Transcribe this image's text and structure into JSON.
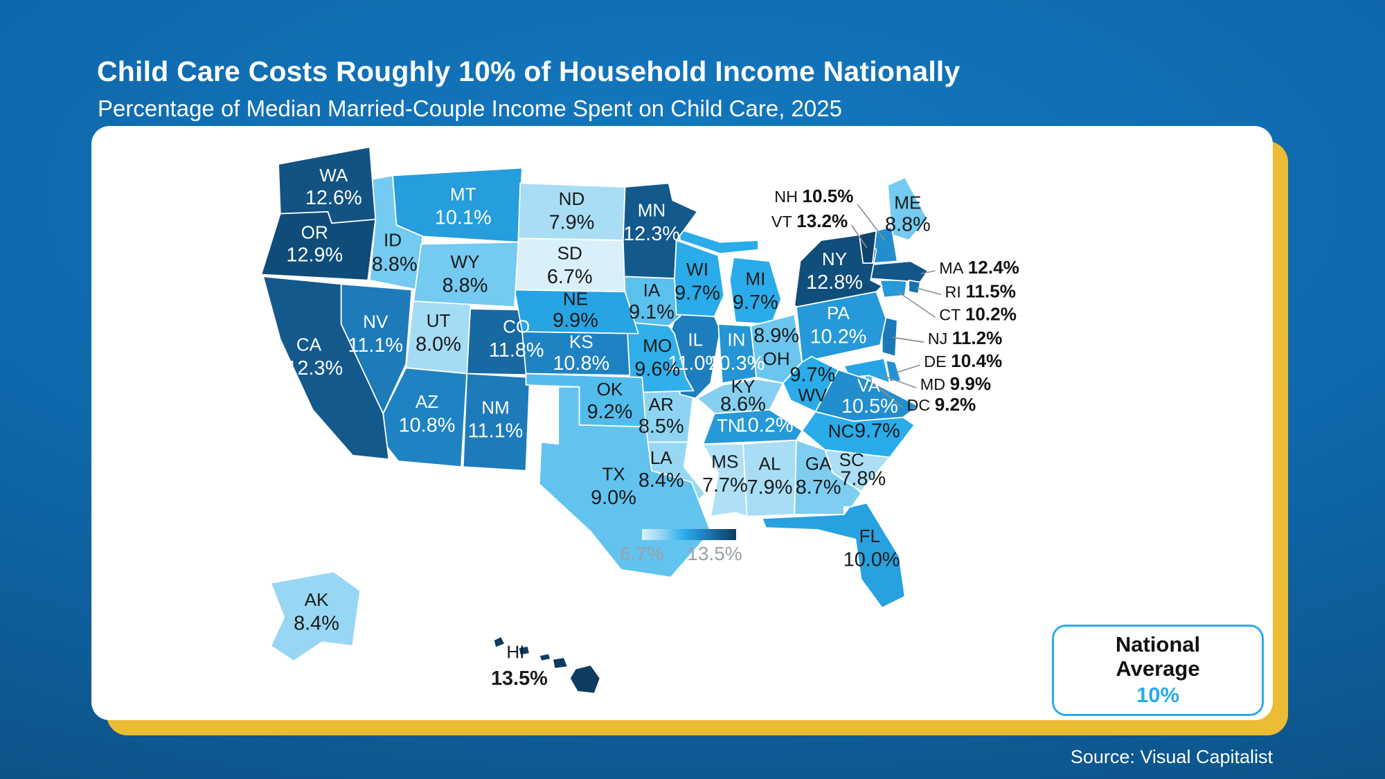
{
  "header": {
    "title": "Child Care Costs Roughly 10% of Household Income Nationally",
    "subtitle": "Percentage of Median Married-Couple Income Spent on Child Care, 2025"
  },
  "source": "Source: Visual Capitalist",
  "legend": {
    "min": "6.7%",
    "max": "13.5%"
  },
  "national_average": {
    "label": "National Average",
    "value": "10%"
  },
  "colors": {
    "accent": "#29ABE9",
    "gold": "#EBBC34",
    "card": "#FFFFFF",
    "bg_center": "#1379C0",
    "bg_edge": "#0C4E80",
    "label_dark": "#1A1A1A",
    "label_light": "#FFFFFF",
    "legend_text": "#9AA1A7",
    "callout_text": "#111111",
    "leader_line": "#8A8F94",
    "scale": [
      [
        6.7,
        "#D9F0FA"
      ],
      [
        7.7,
        "#AFE0F6"
      ],
      [
        8.4,
        "#97D7F3"
      ],
      [
        9.0,
        "#62C3EE"
      ],
      [
        9.7,
        "#29ACE9"
      ],
      [
        10.2,
        "#2599D9"
      ],
      [
        10.8,
        "#1F83C3"
      ],
      [
        11.5,
        "#1A71AF"
      ],
      [
        12.3,
        "#14598C"
      ],
      [
        12.9,
        "#0F4C79"
      ],
      [
        13.5,
        "#0D3C60"
      ]
    ]
  },
  "chart_data": {
    "type": "heatmap",
    "subtype": "us-state-choropleth",
    "title": "Child Care Costs Roughly 10% of Household Income Nationally",
    "subtitle": "Percentage of Median Married-Couple Income Spent on Child Care, 2025",
    "unit": "%",
    "value_range": [
      6.7,
      13.5
    ],
    "national_average_pct": 10,
    "legend_position": "bottom-center",
    "states": [
      {
        "abbr": "AL",
        "value": 7.9,
        "display": "7.9%"
      },
      {
        "abbr": "AK",
        "value": 8.4,
        "display": "8.4%"
      },
      {
        "abbr": "AZ",
        "value": 10.8,
        "display": "10.8%"
      },
      {
        "abbr": "AR",
        "value": 8.5,
        "display": "8.5%"
      },
      {
        "abbr": "CA",
        "value": 12.3,
        "display": "12.3%"
      },
      {
        "abbr": "CO",
        "value": 11.8,
        "display": "11.8%"
      },
      {
        "abbr": "CT",
        "value": 10.2,
        "display": "10.2%"
      },
      {
        "abbr": "DE",
        "value": 10.4,
        "display": "10.4%"
      },
      {
        "abbr": "DC",
        "value": 9.2,
        "display": "9.2%"
      },
      {
        "abbr": "FL",
        "value": 10.0,
        "display": "10.0%"
      },
      {
        "abbr": "GA",
        "value": 8.7,
        "display": "8.7%"
      },
      {
        "abbr": "HI",
        "value": 13.5,
        "display": "13.5%"
      },
      {
        "abbr": "ID",
        "value": 8.8,
        "display": "8.8%"
      },
      {
        "abbr": "IL",
        "value": 11.0,
        "display": "11.0%"
      },
      {
        "abbr": "IN",
        "value": 10.3,
        "display": "10.3%"
      },
      {
        "abbr": "IA",
        "value": 9.1,
        "display": "9.1%"
      },
      {
        "abbr": "KS",
        "value": 10.8,
        "display": "10.8%"
      },
      {
        "abbr": "KY",
        "value": 8.6,
        "display": "8.6%"
      },
      {
        "abbr": "LA",
        "value": 8.4,
        "display": "8.4%"
      },
      {
        "abbr": "ME",
        "value": 8.8,
        "display": "8.8%"
      },
      {
        "abbr": "MD",
        "value": 9.9,
        "display": "9.9%"
      },
      {
        "abbr": "MA",
        "value": 12.4,
        "display": "12.4%"
      },
      {
        "abbr": "MI",
        "value": 9.7,
        "display": "9.7%"
      },
      {
        "abbr": "MN",
        "value": 12.3,
        "display": "12.3%"
      },
      {
        "abbr": "MS",
        "value": 7.7,
        "display": "7.7%"
      },
      {
        "abbr": "MO",
        "value": 9.6,
        "display": "9.6%"
      },
      {
        "abbr": "MT",
        "value": 10.1,
        "display": "10.1%"
      },
      {
        "abbr": "NE",
        "value": 9.9,
        "display": "9.9%"
      },
      {
        "abbr": "NV",
        "value": 11.1,
        "display": "11.1%"
      },
      {
        "abbr": "NH",
        "value": 10.5,
        "display": "10.5%"
      },
      {
        "abbr": "NJ",
        "value": 11.2,
        "display": "11.2%"
      },
      {
        "abbr": "NM",
        "value": 11.1,
        "display": "11.1%"
      },
      {
        "abbr": "NY",
        "value": 12.8,
        "display": "12.8%"
      },
      {
        "abbr": "NC",
        "value": 9.7,
        "display": "9.7%"
      },
      {
        "abbr": "ND",
        "value": 7.9,
        "display": "7.9%"
      },
      {
        "abbr": "OH",
        "value": 8.9,
        "display": "8.9%"
      },
      {
        "abbr": "OK",
        "value": 9.2,
        "display": "9.2%"
      },
      {
        "abbr": "OR",
        "value": 12.9,
        "display": "12.9%"
      },
      {
        "abbr": "PA",
        "value": 10.2,
        "display": "10.2%"
      },
      {
        "abbr": "RI",
        "value": 11.5,
        "display": "11.5%"
      },
      {
        "abbr": "SC",
        "value": 7.8,
        "display": "7.8%"
      },
      {
        "abbr": "SD",
        "value": 6.7,
        "display": "6.7%"
      },
      {
        "abbr": "TN",
        "value": 10.2,
        "display": "10.2%"
      },
      {
        "abbr": "TX",
        "value": 9.0,
        "display": "9.0%"
      },
      {
        "abbr": "UT",
        "value": 8.0,
        "display": "8.0%"
      },
      {
        "abbr": "VT",
        "value": 13.2,
        "display": "13.2%"
      },
      {
        "abbr": "VA",
        "value": 10.5,
        "display": "10.5%"
      },
      {
        "abbr": "WA",
        "value": 12.6,
        "display": "12.6%"
      },
      {
        "abbr": "WV",
        "value": 9.7,
        "display": "9.7%"
      },
      {
        "abbr": "WI",
        "value": 9.7,
        "display": "9.7%"
      },
      {
        "abbr": "WY",
        "value": 8.8,
        "display": "8.8%"
      }
    ]
  }
}
